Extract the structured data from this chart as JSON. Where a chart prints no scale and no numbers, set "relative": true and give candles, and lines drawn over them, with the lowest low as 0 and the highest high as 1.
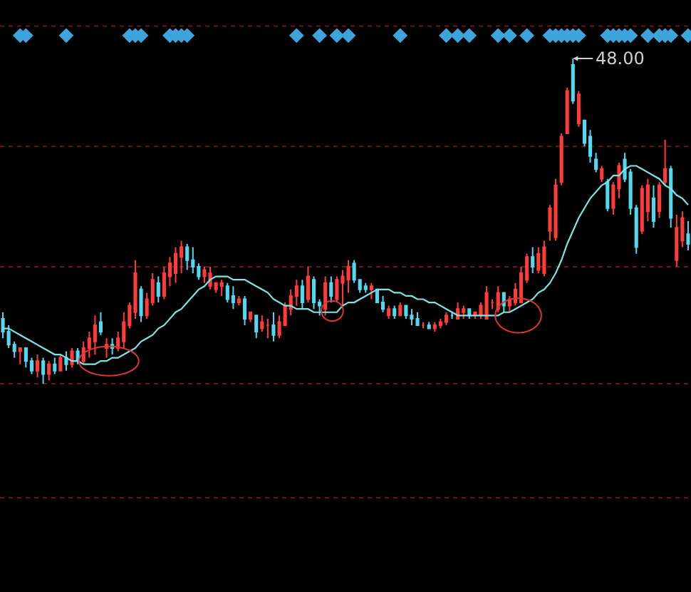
{
  "chart_data": {
    "type": "candlestick",
    "relative": true,
    "tick_labels": false,
    "categories": [
      null,
      null,
      null,
      null,
      null,
      null,
      null,
      null,
      null,
      null,
      null,
      null,
      null,
      null,
      null,
      null,
      null,
      null,
      null,
      null,
      null,
      null,
      null,
      null,
      null,
      null,
      null,
      null,
      null,
      null,
      null,
      null,
      null,
      null,
      null,
      null,
      null,
      null,
      null,
      null,
      null,
      null,
      null,
      null,
      null,
      null,
      null,
      null,
      null,
      null,
      null,
      null,
      null,
      null,
      null,
      null,
      null,
      null,
      null,
      null,
      null,
      null,
      null,
      null,
      null,
      null,
      null,
      null,
      null,
      null,
      null,
      null,
      null,
      null,
      null,
      null,
      null,
      null,
      null,
      null,
      null,
      null,
      null,
      null,
      null,
      null,
      null,
      null,
      null,
      null,
      null,
      null,
      null,
      null,
      null,
      null,
      null,
      null,
      null,
      null,
      null,
      null,
      null,
      null,
      null,
      null,
      null,
      null,
      null,
      null,
      null,
      null,
      null,
      null,
      null,
      null,
      null,
      null,
      null,
      null
    ],
    "ohlc": [
      [
        0.2,
        0.22,
        0.14,
        0.16
      ],
      [
        0.16,
        0.18,
        0.11,
        0.12
      ],
      [
        0.12,
        0.13,
        0.08,
        0.1
      ],
      [
        0.1,
        0.11,
        0.06,
        0.11
      ],
      [
        0.11,
        0.11,
        0.05,
        0.07
      ],
      [
        0.07,
        0.08,
        0.03,
        0.04
      ],
      [
        0.04,
        0.09,
        0.02,
        0.07
      ],
      [
        0.07,
        0.08,
        0.0,
        0.03
      ],
      [
        0.03,
        0.07,
        0.01,
        0.06
      ],
      [
        0.06,
        0.08,
        0.03,
        0.04
      ],
      [
        0.04,
        0.09,
        0.04,
        0.08
      ],
      [
        0.08,
        0.1,
        0.04,
        0.06
      ],
      [
        0.06,
        0.11,
        0.05,
        0.1
      ],
      [
        0.1,
        0.11,
        0.06,
        0.07
      ],
      [
        0.07,
        0.13,
        0.06,
        0.11
      ],
      [
        0.11,
        0.16,
        0.08,
        0.14
      ],
      [
        0.13,
        0.21,
        0.09,
        0.18
      ],
      [
        0.19,
        0.22,
        0.15,
        0.16
      ],
      [
        0.11,
        0.14,
        0.08,
        0.12
      ],
      [
        0.12,
        0.14,
        0.09,
        0.11
      ],
      [
        0.11,
        0.16,
        0.1,
        0.14
      ],
      [
        0.13,
        0.22,
        0.11,
        0.19
      ],
      [
        0.18,
        0.25,
        0.17,
        0.24
      ],
      [
        0.22,
        0.38,
        0.2,
        0.34
      ],
      [
        0.29,
        0.3,
        0.19,
        0.21
      ],
      [
        0.21,
        0.28,
        0.2,
        0.26
      ],
      [
        0.25,
        0.34,
        0.24,
        0.32
      ],
      [
        0.31,
        0.33,
        0.25,
        0.27
      ],
      [
        0.27,
        0.36,
        0.26,
        0.34
      ],
      [
        0.33,
        0.39,
        0.3,
        0.37
      ],
      [
        0.34,
        0.42,
        0.31,
        0.4
      ],
      [
        0.39,
        0.44,
        0.34,
        0.42
      ],
      [
        0.42,
        0.43,
        0.35,
        0.38
      ],
      [
        0.38,
        0.42,
        0.34,
        0.36
      ],
      [
        0.36,
        0.37,
        0.32,
        0.33
      ],
      [
        0.33,
        0.36,
        0.31,
        0.35
      ],
      [
        0.3,
        0.36,
        0.29,
        0.34
      ],
      [
        0.29,
        0.31,
        0.28,
        0.31
      ],
      [
        0.3,
        0.32,
        0.27,
        0.31
      ],
      [
        0.3,
        0.31,
        0.25,
        0.26
      ],
      [
        0.27,
        0.3,
        0.23,
        0.25
      ],
      [
        0.25,
        0.27,
        0.24,
        0.26
      ],
      [
        0.26,
        0.27,
        0.18,
        0.2
      ],
      [
        0.2,
        0.22,
        0.19,
        0.22
      ],
      [
        0.21,
        0.21,
        0.14,
        0.16
      ],
      [
        0.17,
        0.21,
        0.16,
        0.19
      ],
      [
        0.18,
        0.2,
        0.14,
        0.18
      ],
      [
        0.18,
        0.22,
        0.13,
        0.15
      ],
      [
        0.15,
        0.21,
        0.14,
        0.19
      ],
      [
        0.18,
        0.25,
        0.18,
        0.24
      ],
      [
        0.23,
        0.29,
        0.21,
        0.27
      ],
      [
        0.27,
        0.32,
        0.24,
        0.3
      ],
      [
        0.3,
        0.32,
        0.23,
        0.25
      ],
      [
        0.26,
        0.36,
        0.25,
        0.33
      ],
      [
        0.32,
        0.33,
        0.23,
        0.25
      ],
      [
        0.25,
        0.26,
        0.21,
        0.24
      ],
      [
        0.23,
        0.33,
        0.21,
        0.31
      ],
      [
        0.31,
        0.33,
        0.25,
        0.27
      ],
      [
        0.26,
        0.33,
        0.25,
        0.32
      ],
      [
        0.31,
        0.35,
        0.24,
        0.33
      ],
      [
        0.32,
        0.38,
        0.28,
        0.36
      ],
      [
        0.37,
        0.38,
        0.31,
        0.32
      ],
      [
        0.32,
        0.32,
        0.28,
        0.29
      ],
      [
        0.3,
        0.31,
        0.28,
        0.29
      ],
      [
        0.29,
        0.31,
        0.26,
        0.3
      ],
      [
        0.29,
        0.29,
        0.25,
        0.25
      ],
      [
        0.25,
        0.27,
        0.22,
        0.23
      ],
      [
        0.21,
        0.24,
        0.2,
        0.23
      ],
      [
        0.23,
        0.24,
        0.2,
        0.21
      ],
      [
        0.21,
        0.25,
        0.21,
        0.24
      ],
      [
        0.24,
        0.24,
        0.2,
        0.21
      ],
      [
        0.21,
        0.23,
        0.18,
        0.2
      ],
      [
        0.2,
        0.22,
        0.18,
        0.18
      ],
      [
        0.18,
        0.19,
        0.17,
        0.18
      ],
      [
        0.18,
        0.19,
        0.17,
        0.17
      ],
      [
        0.17,
        0.19,
        0.16,
        0.18
      ],
      [
        0.18,
        0.2,
        0.17,
        0.19
      ],
      [
        0.19,
        0.22,
        0.18,
        0.21
      ],
      [
        0.21,
        0.22,
        0.2,
        0.21
      ],
      [
        0.2,
        0.25,
        0.2,
        0.23
      ],
      [
        0.22,
        0.24,
        0.2,
        0.23
      ],
      [
        0.23,
        0.23,
        0.2,
        0.21
      ],
      [
        0.21,
        0.22,
        0.2,
        0.22
      ],
      [
        0.21,
        0.25,
        0.2,
        0.24
      ],
      [
        0.2,
        0.3,
        0.2,
        0.28
      ],
      [
        0.25,
        0.26,
        0.23,
        0.25
      ],
      [
        0.23,
        0.3,
        0.22,
        0.28
      ],
      [
        0.28,
        0.28,
        0.22,
        0.24
      ],
      [
        0.24,
        0.27,
        0.22,
        0.26
      ],
      [
        0.25,
        0.31,
        0.24,
        0.29
      ],
      [
        0.25,
        0.36,
        0.25,
        0.34
      ],
      [
        0.32,
        0.4,
        0.31,
        0.39
      ],
      [
        0.39,
        0.42,
        0.34,
        0.36
      ],
      [
        0.35,
        0.42,
        0.34,
        0.4
      ],
      [
        0.34,
        0.44,
        0.33,
        0.42
      ],
      [
        0.47,
        0.55,
        0.44,
        0.54
      ],
      [
        0.45,
        0.63,
        0.44,
        0.61
      ],
      [
        0.62,
        0.77,
        0.61,
        0.76
      ],
      [
        0.77,
        0.91,
        0.77,
        0.9
      ],
      [
        0.98,
        1.0,
        0.86,
        0.87
      ],
      [
        0.8,
        0.9,
        0.79,
        0.89
      ],
      [
        0.81,
        0.81,
        0.73,
        0.74
      ],
      [
        0.76,
        0.78,
        0.68,
        0.7
      ],
      [
        0.69,
        0.71,
        0.65,
        0.66
      ],
      [
        0.63,
        0.67,
        0.62,
        0.66
      ],
      [
        0.62,
        0.63,
        0.53,
        0.54
      ],
      [
        0.54,
        0.62,
        0.52,
        0.61
      ],
      [
        0.6,
        0.68,
        0.57,
        0.67
      ],
      [
        0.69,
        0.71,
        0.62,
        0.63
      ],
      [
        0.65,
        0.66,
        0.52,
        0.54
      ],
      [
        0.54,
        0.55,
        0.4,
        0.42
      ],
      [
        0.47,
        0.61,
        0.46,
        0.6
      ],
      [
        0.53,
        0.63,
        0.5,
        0.61
      ],
      [
        0.57,
        0.61,
        0.48,
        0.5
      ],
      [
        0.53,
        0.62,
        0.51,
        0.61
      ],
      [
        0.62,
        0.75,
        0.61,
        0.66
      ],
      [
        0.66,
        0.67,
        0.48,
        0.51
      ],
      [
        0.38,
        0.52,
        0.36,
        0.48
      ],
      [
        0.44,
        0.53,
        0.42,
        0.51
      ],
      [
        0.46,
        0.5,
        0.41,
        0.43
      ]
    ],
    "colors": [
      "#54d8f0",
      "#54d8f0",
      "#54d8f0",
      "#ff3b3b",
      "#54d8f0",
      "#54d8f0",
      "#ff3b3b",
      "#54d8f0",
      "#ff3b3b",
      "#54d8f0",
      "#ff3b3b",
      "#54d8f0",
      "#ff3b3b",
      "#54d8f0",
      "#ff3b3b",
      "#ff3b3b",
      "#ff3b3b",
      "#54d8f0",
      "#ff3b3b",
      "#54d8f0",
      "#ff3b3b",
      "#ff3b3b",
      "#ff3b3b",
      "#ff3b3b",
      "#54d8f0",
      "#ff3b3b",
      "#ff3b3b",
      "#54d8f0",
      "#ff3b3b",
      "#ff3b3b",
      "#ff3b3b",
      "#ff3b3b",
      "#54d8f0",
      "#54d8f0",
      "#54d8f0",
      "#ff3b3b",
      "#ff3b3b",
      "#ff3b3b",
      "#ff3b3b",
      "#54d8f0",
      "#54d8f0",
      "#ff3b3b",
      "#54d8f0",
      "#ff3b3b",
      "#54d8f0",
      "#ff3b3b",
      "#ff3b3b",
      "#54d8f0",
      "#ff3b3b",
      "#ff3b3b",
      "#ff3b3b",
      "#ff3b3b",
      "#54d8f0",
      "#ff3b3b",
      "#54d8f0",
      "#54d8f0",
      "#ff3b3b",
      "#54d8f0",
      "#ff3b3b",
      "#ff3b3b",
      "#ff3b3b",
      "#54d8f0",
      "#54d8f0",
      "#54d8f0",
      "#ff3b3b",
      "#54d8f0",
      "#54d8f0",
      "#ff3b3b",
      "#54d8f0",
      "#ff3b3b",
      "#54d8f0",
      "#54d8f0",
      "#54d8f0",
      "#ff3b3b",
      "#54d8f0",
      "#ff3b3b",
      "#ff3b3b",
      "#ff3b3b",
      "#54d8f0",
      "#ff3b3b",
      "#ff3b3b",
      "#54d8f0",
      "#ff3b3b",
      "#ff3b3b",
      "#ff3b3b",
      "#ff3b3b",
      "#ff3b3b",
      "#54d8f0",
      "#ff3b3b",
      "#ff3b3b",
      "#ff3b3b",
      "#ff3b3b",
      "#54d8f0",
      "#ff3b3b",
      "#ff3b3b",
      "#ff3b3b",
      "#ff3b3b",
      "#ff3b3b",
      "#ff3b3b",
      "#54d8f0",
      "#ff3b3b",
      "#54d8f0",
      "#54d8f0",
      "#54d8f0",
      "#ff3b3b",
      "#54d8f0",
      "#ff3b3b",
      "#ff3b3b",
      "#54d8f0",
      "#54d8f0",
      "#54d8f0",
      "#ff3b3b",
      "#ff3b3b",
      "#54d8f0",
      "#ff3b3b",
      "#ff3b3b",
      "#54d8f0",
      "#ff3b3b",
      "#ff3b3b",
      "#54d8f0"
    ],
    "series": [
      {
        "type": "line",
        "color": "#7fe3e3",
        "values": [
          0.17,
          0.17,
          0.16,
          0.15,
          0.14,
          0.13,
          0.12,
          0.11,
          0.1,
          0.09,
          0.09,
          0.08,
          0.07,
          0.07,
          0.06,
          0.06,
          0.06,
          0.07,
          0.07,
          0.08,
          0.08,
          0.09,
          0.1,
          0.11,
          0.13,
          0.14,
          0.15,
          0.17,
          0.18,
          0.2,
          0.22,
          0.23,
          0.25,
          0.27,
          0.29,
          0.3,
          0.32,
          0.33,
          0.33,
          0.33,
          0.32,
          0.32,
          0.32,
          0.31,
          0.3,
          0.29,
          0.28,
          0.26,
          0.25,
          0.24,
          0.24,
          0.23,
          0.23,
          0.23,
          0.22,
          0.22,
          0.22,
          0.22,
          0.22,
          0.24,
          0.25,
          0.25,
          0.26,
          0.27,
          0.28,
          0.29,
          0.29,
          0.29,
          0.28,
          0.28,
          0.27,
          0.27,
          0.26,
          0.26,
          0.25,
          0.25,
          0.24,
          0.23,
          0.22,
          0.21,
          0.21,
          0.21,
          0.21,
          0.21,
          0.21,
          0.21,
          0.21,
          0.22,
          0.22,
          0.23,
          0.24,
          0.25,
          0.26,
          0.28,
          0.29,
          0.31,
          0.34,
          0.38,
          0.43,
          0.47,
          0.51,
          0.54,
          0.57,
          0.59,
          0.61,
          0.62,
          0.64,
          0.64,
          0.66,
          0.67,
          0.67,
          0.66,
          0.65,
          0.64,
          0.63,
          0.61,
          0.6,
          0.58,
          0.57,
          0.55
        ]
      }
    ],
    "ref_lines": [
      {
        "axis": "y",
        "value": 1.1,
        "color": "#6e1414",
        "line_style": "dotted"
      },
      {
        "axis": "y",
        "value": 0.73,
        "color": "#6e1414",
        "line_style": "dotted"
      },
      {
        "axis": "y",
        "value": 0.36,
        "color": "#6e1414",
        "line_style": "dotted"
      },
      {
        "axis": "y",
        "value": 0.0,
        "color": "#6e1414",
        "line_style": "dotted"
      },
      {
        "axis": "y",
        "value": -0.35,
        "color": "#6e1414",
        "line_style": "dotted"
      }
    ],
    "annotations": [
      "48.00"
    ]
  }
}
